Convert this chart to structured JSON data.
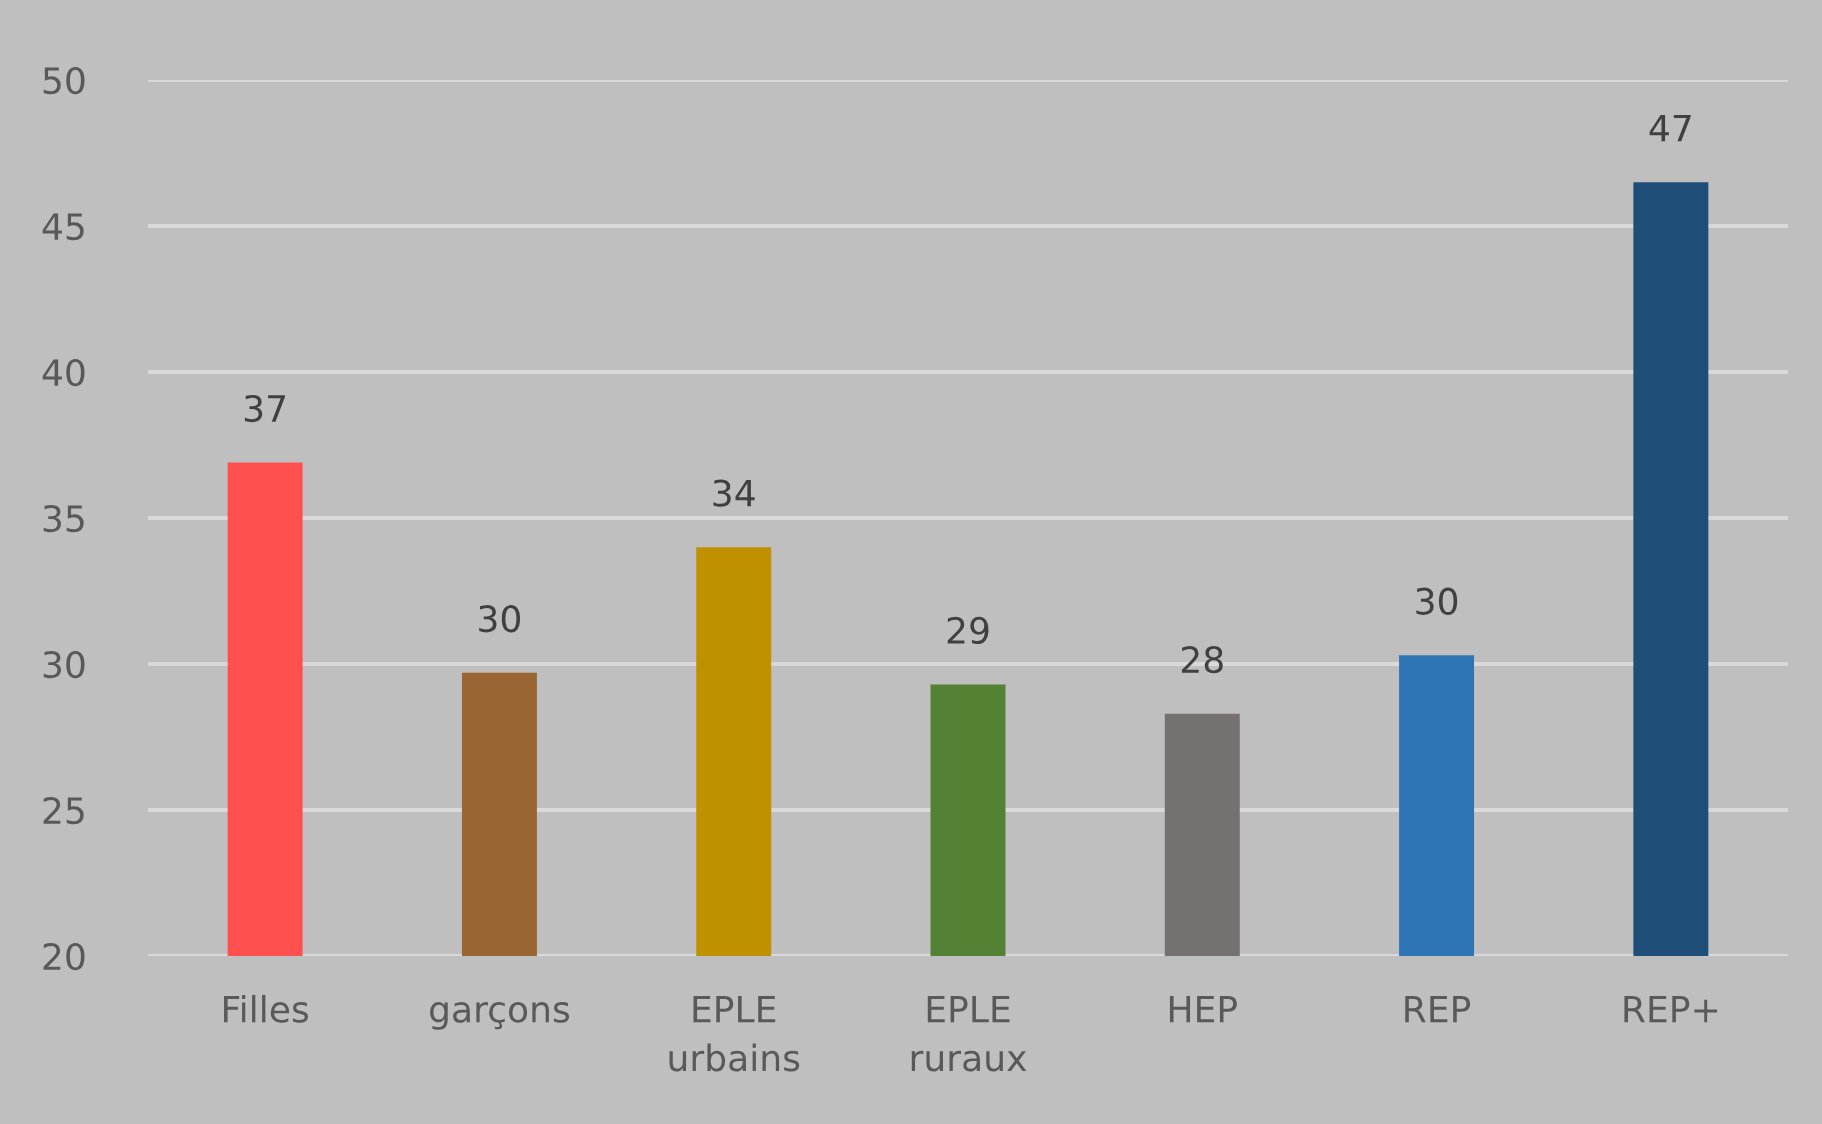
{
  "chart_data": {
    "type": "bar",
    "categories": [
      "Filles",
      "garçons",
      "EPLE urbains",
      "EPLE ruraux",
      "HEP",
      "REP",
      "REP+"
    ],
    "values": [
      36.9,
      29.7,
      34.0,
      29.3,
      28.3,
      30.3,
      46.5
    ],
    "value_labels": [
      "37",
      "30",
      "34",
      "29",
      "28",
      "30",
      "47"
    ],
    "colors": [
      "#ff5050",
      "#996633",
      "#bf9000",
      "#548235",
      "#767171",
      "#2e75b6",
      "#1f4e79"
    ],
    "ylim": [
      20,
      50
    ],
    "yticks": [
      20,
      25,
      30,
      35,
      40,
      45,
      50
    ],
    "grid": "y",
    "legend": false
  }
}
